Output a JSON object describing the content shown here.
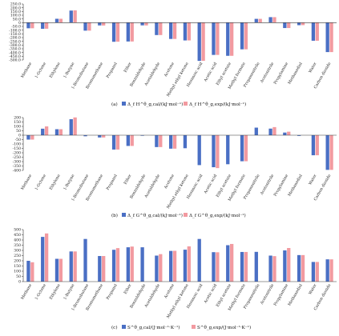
{
  "colors": {
    "series1": "#4a6fc4",
    "series2": "#f29aa0",
    "axis": "#333333"
  },
  "chart_data": [
    {
      "type": "bar",
      "panel": "(a)",
      "ylim": [
        -500,
        250
      ],
      "yticks": [
        "250.0",
        "200.0",
        "150.0",
        "100.0",
        "50.0",
        "0",
        "-50.0",
        "-100.0",
        "-150.0",
        "-200.0",
        "-250.0",
        "-300.0",
        "-350.0",
        "-400.0",
        "-450.0",
        "-500.0"
      ],
      "categories": [
        "Methane",
        "1-Octene",
        "Ethylene",
        "1-Butyne",
        "1-Bromobutane",
        "Bromomethane",
        "Propanol",
        "Ether",
        "Benzaldehyde",
        "Acetaldehyde",
        "Acetone",
        "Methyl ethyl ketone",
        "Hexanoic acid",
        "Acetic acid",
        "Ethyl acetate",
        "Methyl formate",
        "Propanenitrile",
        "Acetonitrile",
        "Propylamine",
        "Methanediol",
        "Water",
        "Carbon dioxide"
      ],
      "series": [
        {
          "name": "Δ_f H^θ_g,cal/(kJ·mol⁻¹)",
          "values": [
            -75,
            -82,
            52,
            162,
            -107,
            -37,
            -256,
            -252,
            -36,
            -166,
            -218,
            -238,
            -512,
            -432,
            -444,
            -357,
            51,
            74,
            -72,
            -34,
            -242,
            -394
          ]
        },
        {
          "name": "Δ_f H^θ_g,exp/(kJ·mol⁻¹)",
          "values": [
            -75,
            -81,
            52,
            165,
            -107,
            -38,
            -255,
            -252,
            -37,
            -166,
            -218,
            -238,
            -511,
            -432,
            -444,
            -357,
            51,
            74,
            -72,
            -33,
            -242,
            -394
          ]
        }
      ]
    },
    {
      "type": "bar",
      "panel": "(b)",
      "ylim": [
        -400,
        200
      ],
      "yticks": [
        "200",
        "150",
        "100",
        "50",
        "0",
        "-50",
        "-100",
        "-150",
        "-200",
        "-250",
        "-300",
        "-350",
        "-400"
      ],
      "categories": [
        "Methane",
        "1-Octene",
        "Ethylene",
        "1-Butyne",
        "1-Bromobutane",
        "Bromomethane",
        "Propanol",
        "Ether",
        "Benzaldehyde",
        "Acetaldehyde",
        "Acetone",
        "Methyl ethyl ketone",
        "Hexanoic acid",
        "Acetic acid",
        "Ethyl acetate",
        "Methyl formate",
        "Propanenitrile",
        "Acetonitrile",
        "Propylamine",
        "Methanediol",
        "Water",
        "Carbon dioxide"
      ],
      "series": [
        {
          "name": "Δ_f G^θ_g,cal/(kJ·mol⁻¹)",
          "values": [
            -50,
            74,
            68,
            182,
            -12,
            -26,
            -163,
            -122,
            -6,
            -135,
            -153,
            -148,
            -340,
            -364,
            -330,
            -296,
            86,
            75,
            30,
            -8,
            -228,
            -394
          ]
        },
        {
          "name": "Δ_f G^θ_g,exp/(kJ·mol⁻¹)",
          "values": [
            -50,
            100,
            68,
            202,
            0,
            -26,
            -163,
            -122,
            0,
            -135,
            -153,
            0,
            0,
            -374,
            0,
            -296,
            0,
            92,
            40,
            0,
            -228,
            -394
          ]
        }
      ]
    },
    {
      "type": "bar",
      "panel": "(c)",
      "ylim": [
        0,
        500
      ],
      "yticks": [
        "500",
        "450",
        "400",
        "350",
        "300",
        "250",
        "200",
        "150",
        "100",
        "50",
        "0"
      ],
      "categories": [
        "Methane",
        "1-Octene",
        "Ethylene",
        "1-Butyne",
        "1-Bromobutane",
        "Bromomethane",
        "Propanol",
        "Ether",
        "Benzaldehyde",
        "Acetaldehyde",
        "Acetone",
        "Methyl ethyl ketone",
        "Hexanoic acid",
        "Acetic acid",
        "Ethyl acetate",
        "Methyl formate",
        "Propanenitrile",
        "Acetonitrile",
        "Propylamine",
        "Methanediol",
        "Water",
        "Carbon dioxide"
      ],
      "series": [
        {
          "name": "S^θ_g,cal/(J·mol⁻¹·K⁻¹)",
          "values": [
            200,
            430,
            219,
            290,
            410,
            246,
            306,
            330,
            330,
            250,
            295,
            307,
            410,
            283,
            350,
            285,
            286,
            250,
            300,
            255,
            189,
            214
          ]
        },
        {
          "name": "S^θ_g,exp/(J·mol⁻¹·K⁻¹)",
          "values": [
            186,
            463,
            219,
            290,
            0,
            246,
            322,
            337,
            0,
            264,
            296,
            339,
            0,
            282,
            362,
            285,
            0,
            245,
            323,
            255,
            189,
            214
          ]
        }
      ]
    }
  ]
}
